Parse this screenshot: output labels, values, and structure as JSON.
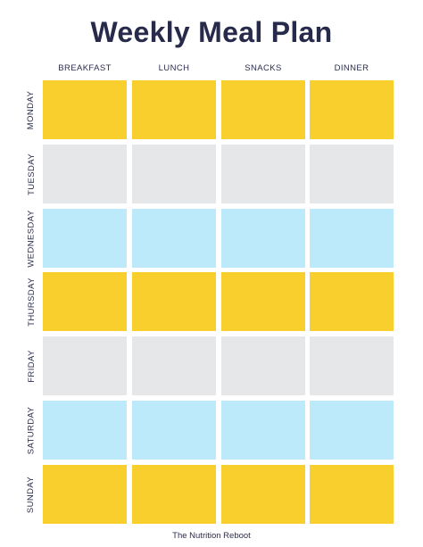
{
  "title": "Weekly Meal Plan",
  "columns": [
    "BREAKFAST",
    "LUNCH",
    "SNACKS",
    "DINNER"
  ],
  "days": [
    "MONDAY",
    "TUESDAY",
    "WEDNESDAY",
    "THURSDAY",
    "FRIDAY",
    "SATURDAY",
    "SUNDAY"
  ],
  "row_colors": [
    "#f9cf2e",
    "#e6e7e9",
    "#bdeafb",
    "#f9cf2e",
    "#e6e7e9",
    "#bdeafb",
    "#f9cf2e"
  ],
  "footer": "The Nutrition Reboot"
}
